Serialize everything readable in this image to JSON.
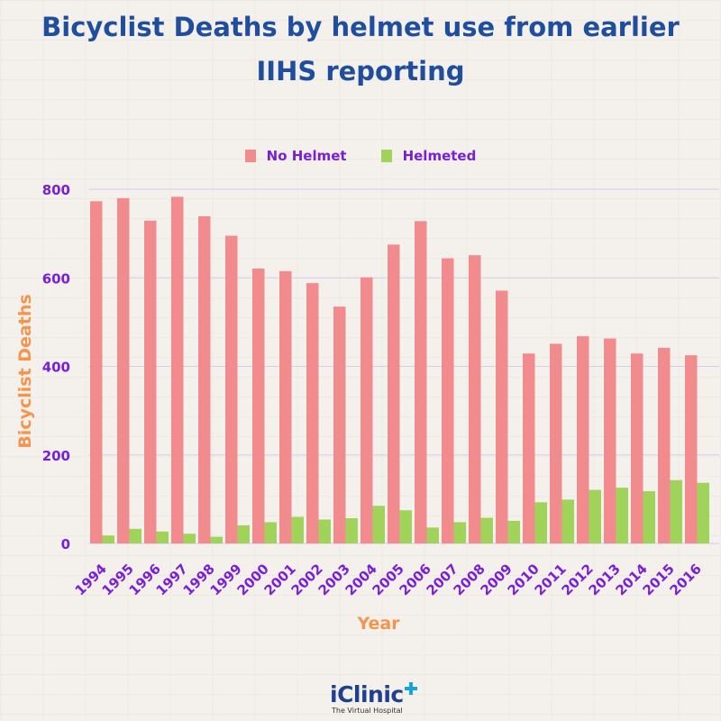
{
  "title_line1": "Bicyclist Deaths by helmet use from earlier",
  "title_line2": "IIHS reporting",
  "brand": {
    "name": "iClinic",
    "tagline": "The Virtual Hospital"
  },
  "chart_data": {
    "type": "bar",
    "categories": [
      "1994",
      "1995",
      "1996",
      "1997",
      "1998",
      "1999",
      "2000",
      "2001",
      "2002",
      "2003",
      "2004",
      "2005",
      "2006",
      "2007",
      "2008",
      "2009",
      "2010",
      "2011",
      "2012",
      "2013",
      "2014",
      "2015",
      "2016"
    ],
    "series": [
      {
        "name": "No Helmet",
        "color": "#f28b8e",
        "values": [
          773,
          780,
          729,
          783,
          739,
          695,
          621,
          615,
          588,
          535,
          601,
          675,
          728,
          644,
          651,
          571,
          429,
          451,
          468,
          463,
          429,
          442,
          425
        ]
      },
      {
        "name": "Helmeted",
        "color": "#9fd35a",
        "values": [
          18,
          33,
          27,
          22,
          15,
          41,
          48,
          60,
          54,
          57,
          85,
          75,
          36,
          48,
          58,
          51,
          93,
          99,
          121,
          126,
          118,
          143,
          137
        ]
      }
    ],
    "xlabel": "Year",
    "ylabel": "Bicyclist Deaths",
    "ylim": [
      0,
      800
    ],
    "yticks": [
      0,
      200,
      400,
      600,
      800
    ],
    "grid": true,
    "legend_position": "top"
  }
}
